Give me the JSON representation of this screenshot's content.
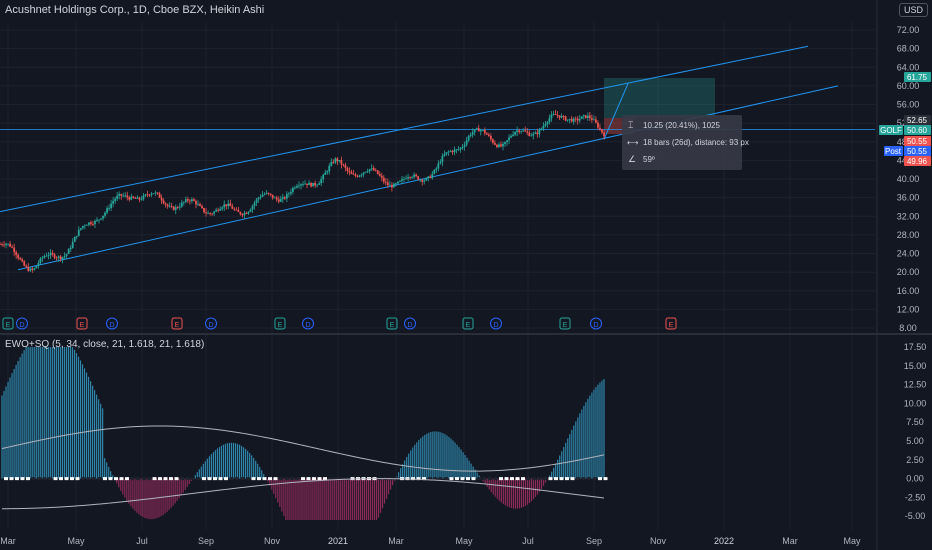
{
  "header": {
    "title": "Acushnet Holdings Corp., 1D, Cboe BZX, Heikin Ashi",
    "currency": "USD"
  },
  "price_axis": {
    "ticks": [
      "72.00",
      "68.00",
      "64.00",
      "60.00",
      "56.00",
      "52.00",
      "48.00",
      "44.00",
      "40.00",
      "36.00",
      "32.00",
      "28.00",
      "24.00",
      "20.00",
      "16.00",
      "12.00",
      "8.00"
    ]
  },
  "price_labels": [
    {
      "text": "61.75",
      "color": "#26a69a"
    },
    {
      "text": "52.65",
      "color": "#2a2e39"
    },
    {
      "text": "50.60",
      "color": "#26a69a"
    },
    {
      "text": "50.55",
      "color": "#ef5350"
    },
    {
      "text": "50.55",
      "color": "#2962ff"
    },
    {
      "text": "49.96",
      "color": "#ef5350"
    }
  ],
  "symbol_tag": "GOLF",
  "post_tag": "Post",
  "measure_box": {
    "line1": "10.25 (20.41%), 1025",
    "line2": "18 bars (26d), distance: 93 px",
    "line3": "59º"
  },
  "event_markers": [
    "E",
    "D",
    "E",
    "D",
    "E",
    "D",
    "E",
    "D",
    "E",
    "D",
    "E",
    "D",
    "E",
    "D",
    "E"
  ],
  "indicator": {
    "label": "EWO+SQ (5, 34, close, 21, 1.618, 21, 1.618)",
    "ticks": [
      "17.50",
      "15.00",
      "12.50",
      "10.00",
      "7.50",
      "5.00",
      "2.50",
      "0.00",
      "-2.50",
      "-5.00"
    ]
  },
  "time_axis": {
    "labels": [
      "Mar",
      "May",
      "Jul",
      "Sep",
      "Nov",
      "2021",
      "Mar",
      "May",
      "Jul",
      "Sep",
      "Nov",
      "2022",
      "Mar",
      "May"
    ]
  },
  "colors": {
    "up": "#26a69a",
    "down": "#ef5350",
    "channel": "#2196f3",
    "hist_pos": "#2e86ab",
    "hist_neg": "#8e2a5a",
    "band": "#b2b5be",
    "bg": "#131722",
    "grid": "#1e222d"
  },
  "chart_data": {
    "type": "line",
    "title": "Acushnet Holdings Corp., 1D, Cboe BZX, Heikin Ashi",
    "ylabel": "",
    "xlabel": "",
    "ylim": [
      8,
      72
    ],
    "x": [
      "Mar 2020",
      "Apr 2020",
      "May 2020",
      "Jun 2020",
      "Jul 2020",
      "Aug 2020",
      "Sep 2020",
      "Oct 2020",
      "Nov 2020",
      "Dec 2020",
      "Jan 2021",
      "Feb 2021",
      "Mar 2021",
      "Apr 2021",
      "May 2021",
      "Jun 2021",
      "Jul 2021",
      "Aug 2021",
      "Sep 2021"
    ],
    "series": [
      {
        "name": "GOLF",
        "values": [
          26,
          21,
          25,
          33,
          37,
          35,
          34,
          33,
          36,
          38,
          43,
          41,
          39,
          42,
          50,
          48,
          51,
          54,
          50.6
        ]
      }
    ],
    "channel": {
      "upper_start": [
        0,
        33
      ],
      "upper_end": [
        808,
        68.5
      ],
      "lower_start": [
        18,
        20.5
      ],
      "lower_end": [
        838,
        60
      ]
    },
    "ewo": {
      "ylim": [
        -6,
        18
      ]
    }
  }
}
